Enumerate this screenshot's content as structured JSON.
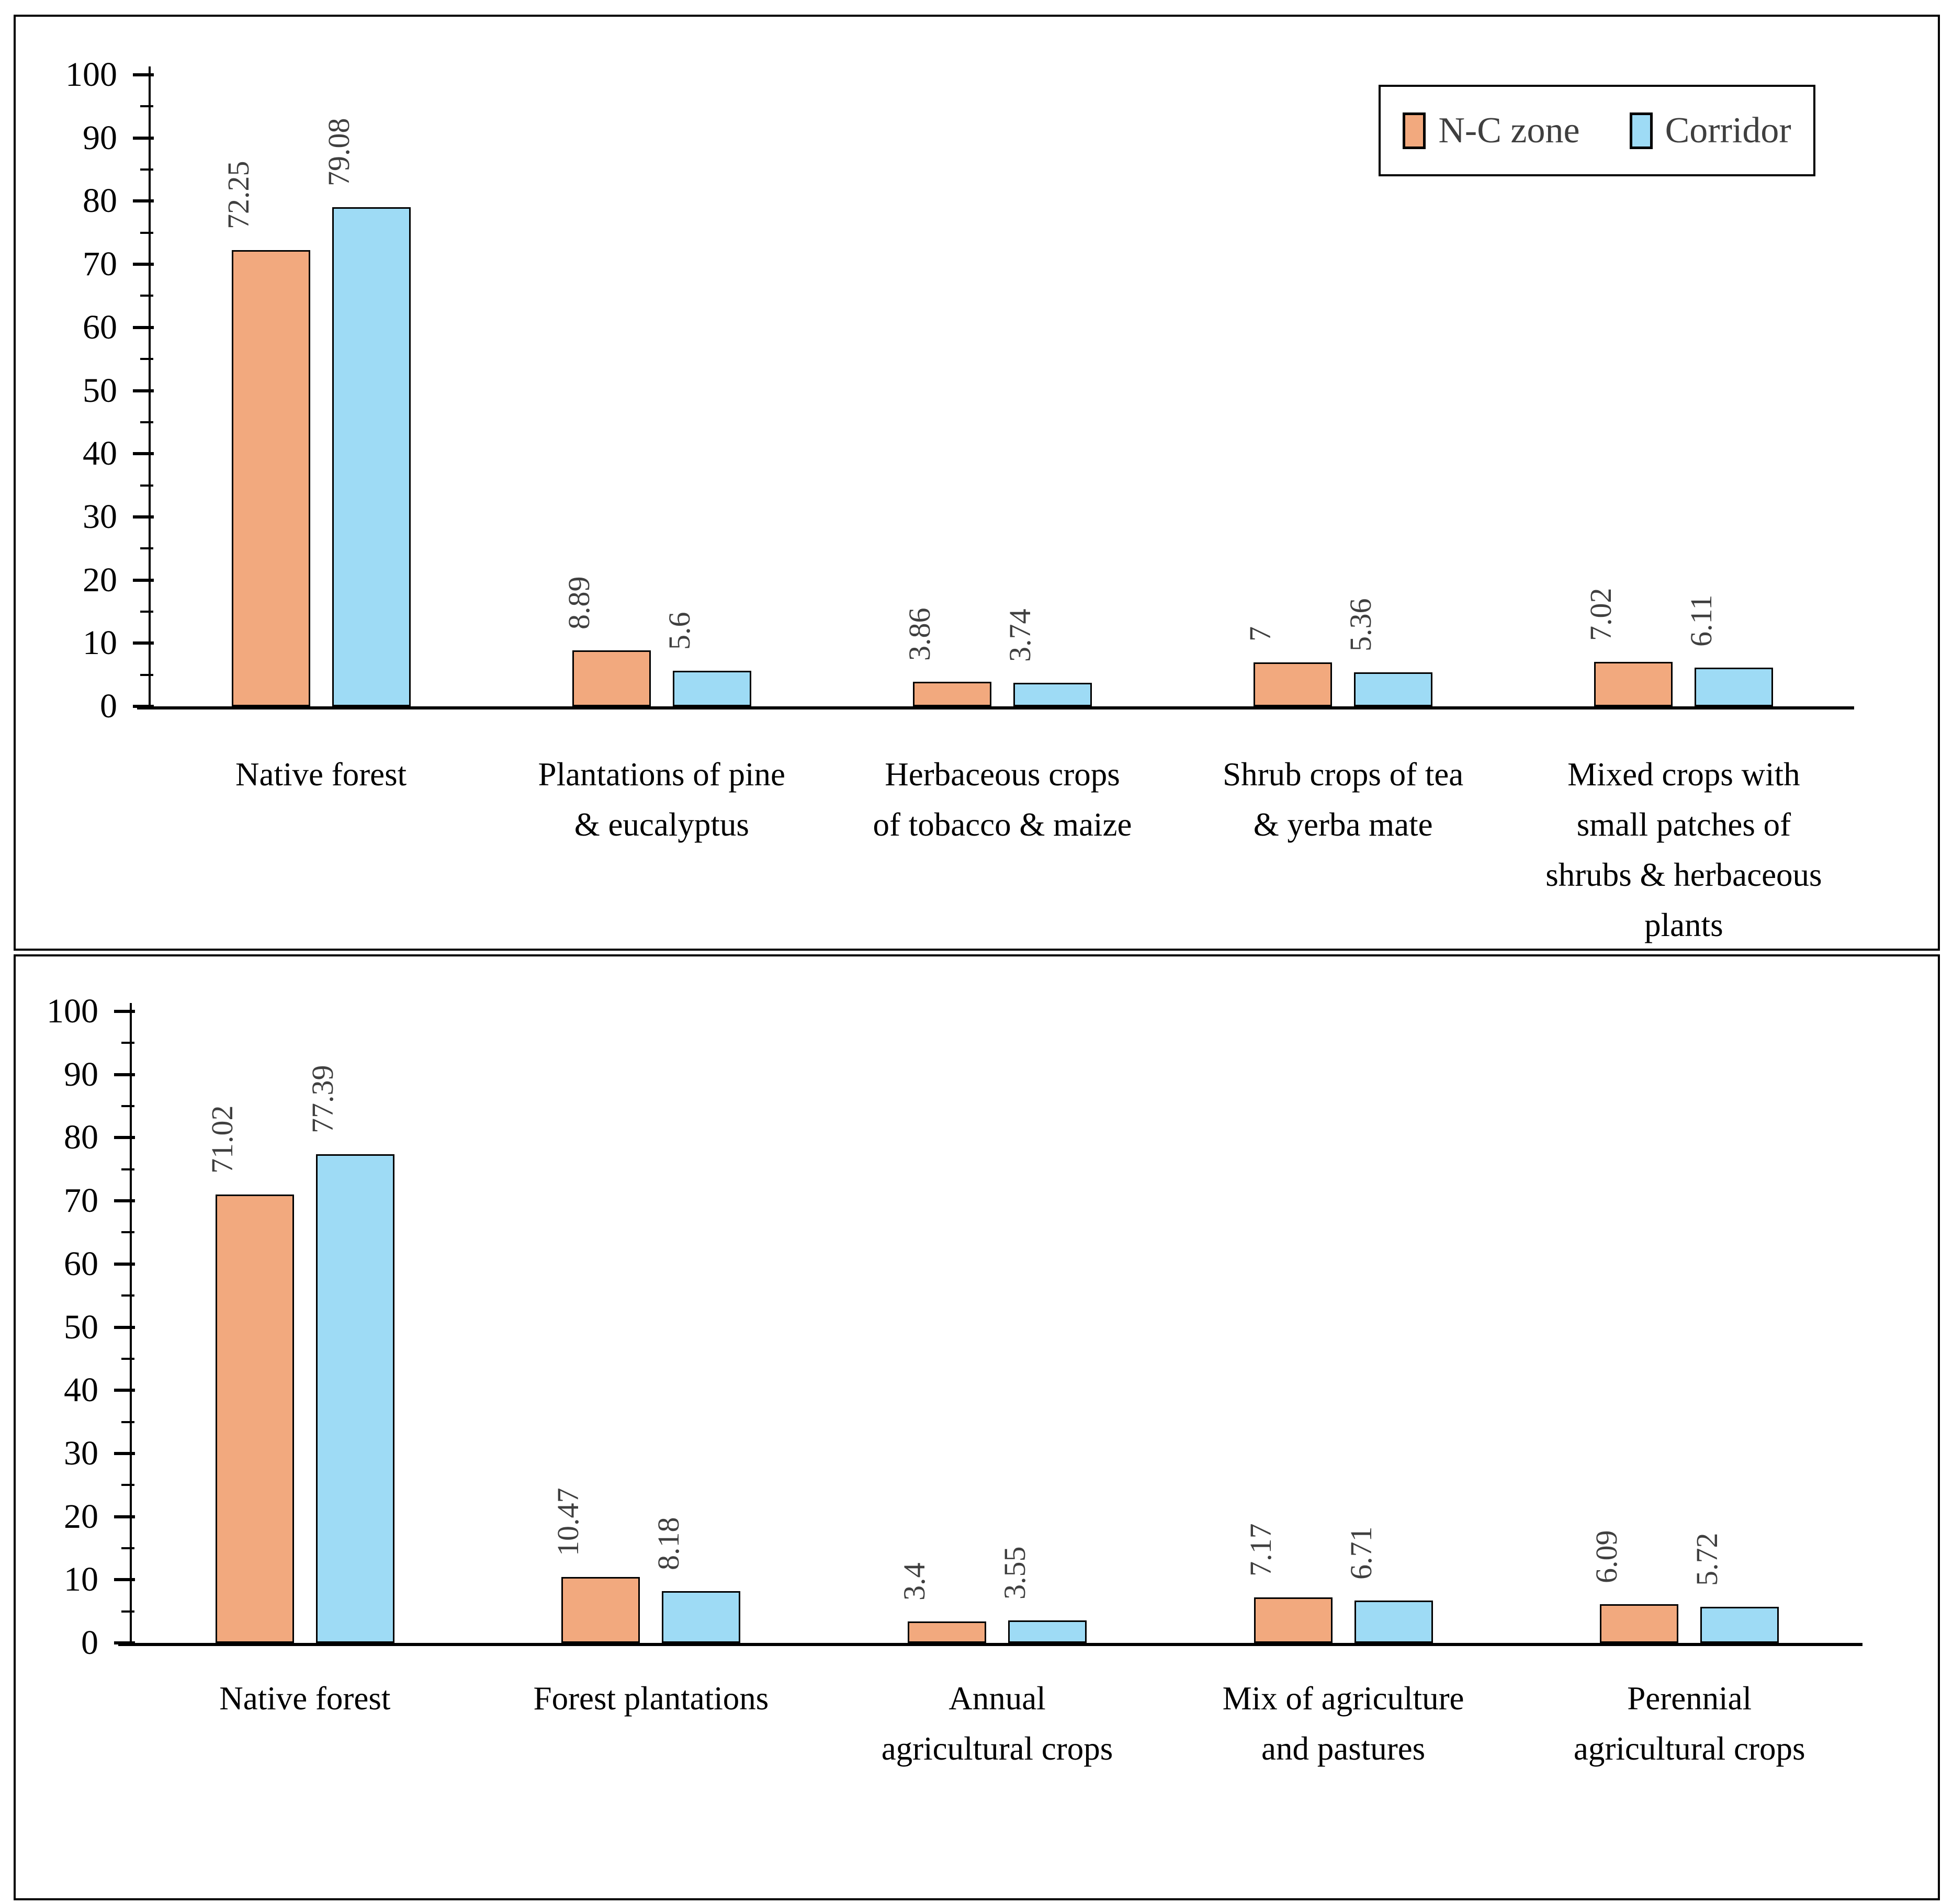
{
  "figure": {
    "description_visible_text_only": "Two stacked bar-chart panels comparing percentage land cover between N-C zone and Corridor",
    "series_colors": {
      "N-C zone": "#F2A97E",
      "Corridor": "#9EDBF5"
    },
    "bar_outline_color": "#000000",
    "value_label_color": "#3f3f3f",
    "axis_color": "#000000"
  },
  "chart_data": [
    {
      "type": "bar",
      "title": "",
      "xlabel": "",
      "ylabel": "",
      "ylim": [
        0,
        100
      ],
      "ytick_step": 10,
      "minor_tick_step": 5,
      "grid": false,
      "categories": [
        "Native forest",
        "Plantations of pine\n& eucalyptus",
        "Herbaceous crops\nof tobacco & maize",
        "Shrub crops of tea\n& yerba mate",
        "Mixed crops with\nsmall patches of\nshrubs & herbaceous\nplants"
      ],
      "series": [
        {
          "name": "N-C zone",
          "color": "#F2A97E",
          "values": [
            72.25,
            8.89,
            3.86,
            7,
            7.02
          ]
        },
        {
          "name": "Corridor",
          "color": "#9EDBF5",
          "values": [
            79.08,
            5.6,
            3.74,
            5.36,
            6.11
          ]
        }
      ],
      "legend": {
        "show": true,
        "position": "top-right",
        "items": [
          "N-C zone",
          "Corridor"
        ]
      }
    },
    {
      "type": "bar",
      "title": "",
      "xlabel": "",
      "ylabel": "",
      "ylim": [
        0,
        100
      ],
      "ytick_step": 10,
      "minor_tick_step": 5,
      "grid": false,
      "categories": [
        "Native forest",
        "Forest plantations",
        "Annual\nagricultural crops",
        "Mix of agriculture\nand pastures",
        "Perennial\nagricultural crops"
      ],
      "series": [
        {
          "name": "N-C zone",
          "color": "#F2A97E",
          "values": [
            71.02,
            10.47,
            3.4,
            7.17,
            6.09
          ]
        },
        {
          "name": "Corridor",
          "color": "#9EDBF5",
          "values": [
            77.39,
            8.18,
            3.55,
            6.71,
            5.72
          ]
        }
      ],
      "legend": {
        "show": false
      }
    }
  ]
}
